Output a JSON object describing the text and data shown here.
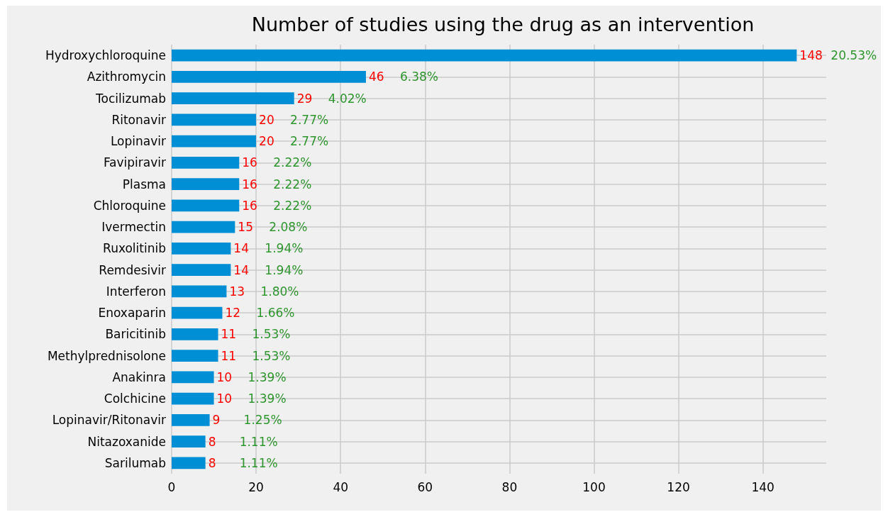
{
  "chart_data": {
    "type": "bar",
    "orientation": "horizontal",
    "title": "Number of studies using the drug as an intervention",
    "categories": [
      "Hydroxychloroquine",
      "Azithromycin",
      "Tocilizumab",
      "Ritonavir",
      "Lopinavir",
      "Favipiravir",
      "Plasma",
      "Chloroquine",
      "Ivermectin",
      "Ruxolitinib",
      "Remdesivir",
      "Interferon",
      "Enoxaparin",
      "Baricitinib",
      "Methylprednisolone",
      "Anakinra",
      "Colchicine",
      "Lopinavir/Ritonavir",
      "Nitazoxanide",
      "Sarilumab"
    ],
    "values": [
      148,
      46,
      29,
      20,
      20,
      16,
      16,
      16,
      15,
      14,
      14,
      13,
      12,
      11,
      11,
      10,
      10,
      9,
      8,
      8
    ],
    "color": "#008fd5",
    "xlim": [
      0,
      155
    ],
    "xticks": [
      0,
      20,
      40,
      60,
      80,
      100,
      120,
      140
    ],
    "grid": true,
    "data_labels": true,
    "annotations": [
      {
        "text": "20.53%",
        "x": 148,
        "y": "Hydroxychloroquine"
      },
      {
        "text": "6.38%",
        "x": 46,
        "y": "Azithromycin"
      },
      {
        "text": "4.02%",
        "x": 29,
        "y": "Tocilizumab"
      },
      {
        "text": "2.77%",
        "x": 20,
        "y": "Ritonavir"
      },
      {
        "text": "2.77%",
        "x": 20,
        "y": "Lopinavir"
      },
      {
        "text": "2.22%",
        "x": 16,
        "y": "Favipiravir"
      },
      {
        "text": "2.22%",
        "x": 16,
        "y": "Plasma"
      },
      {
        "text": "2.22%",
        "x": 16,
        "y": "Chloroquine"
      },
      {
        "text": "2.08%",
        "x": 15,
        "y": "Ivermectin"
      },
      {
        "text": "1.94%",
        "x": 14,
        "y": "Ruxolitinib"
      },
      {
        "text": "1.94%",
        "x": 14,
        "y": "Remdesivir"
      },
      {
        "text": "1.80%",
        "x": 13,
        "y": "Interferon"
      },
      {
        "text": "1.66%",
        "x": 12,
        "y": "Enoxaparin"
      },
      {
        "text": "1.53%",
        "x": 11,
        "y": "Baricitinib"
      },
      {
        "text": "1.53%",
        "x": 11,
        "y": "Methylprednisolone"
      },
      {
        "text": "1.39%",
        "x": 10,
        "y": "Anakinra"
      },
      {
        "text": "1.39%",
        "x": 10,
        "y": "Colchicine"
      },
      {
        "text": "1.25%",
        "x": 9,
        "y": "Lopinavir/Ritonavir"
      },
      {
        "text": "1.11%",
        "x": 8,
        "y": "Nitazoxanide"
      },
      {
        "text": "1.11%",
        "x": 8,
        "y": "Sarilumab"
      }
    ]
  }
}
